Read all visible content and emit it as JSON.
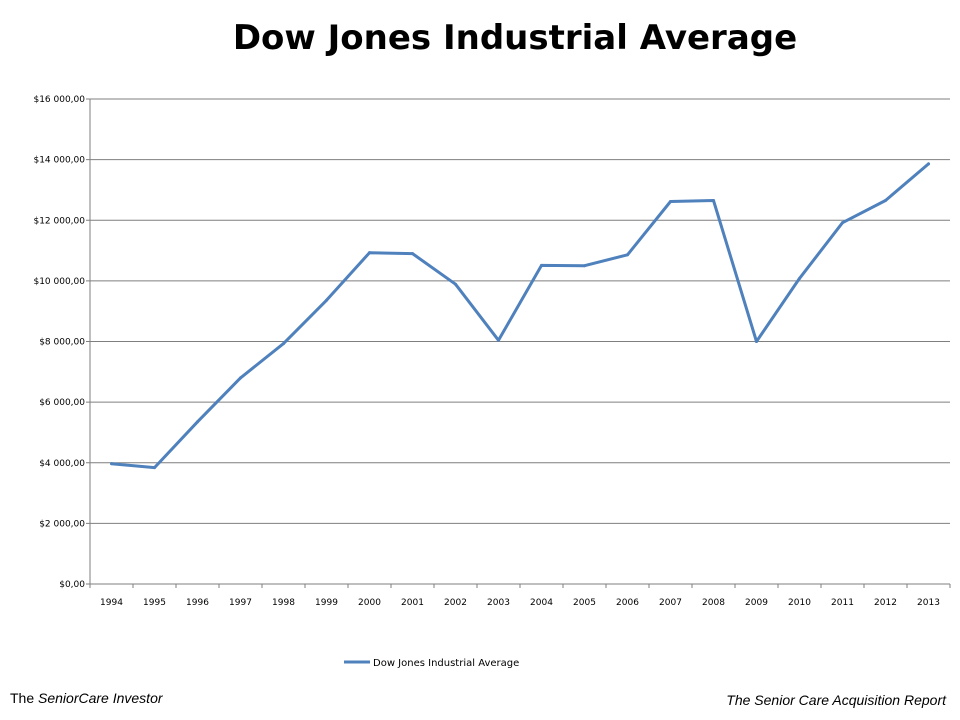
{
  "chart_data": {
    "type": "line",
    "title": "Dow Jones Industrial Average",
    "xlabel": "",
    "ylabel": "",
    "ylim": [
      0,
      16000
    ],
    "y_ticks": [
      "$0,00",
      "$2 000,00",
      "$4 000,00",
      "$6 000,00",
      "$8 000,00",
      "$10 000,00",
      "$12 000,00",
      "$14 000,00",
      "$16 000,00"
    ],
    "categories": [
      "1994",
      "1995",
      "1996",
      "1997",
      "1998",
      "1999",
      "2000",
      "2001",
      "2002",
      "2003",
      "2004",
      "2005",
      "2006",
      "2007",
      "2008",
      "2009",
      "2010",
      "2011",
      "2012",
      "2013"
    ],
    "series": [
      {
        "name": "Dow Jones Industrial Average",
        "color": "#4f81bd",
        "values": [
          3970,
          3840,
          5350,
          6800,
          7930,
          9360,
          10930,
          10900,
          9890,
          8040,
          10510,
          10500,
          10860,
          12620,
          12650,
          8000,
          10080,
          11920,
          12650,
          13860
        ]
      }
    ],
    "grid": true,
    "legend_position": "bottom"
  },
  "footer": {
    "left_prefix": "The ",
    "left_italic": "SeniorCare Investor",
    "right": "The Senior Care Acquisition Report"
  }
}
